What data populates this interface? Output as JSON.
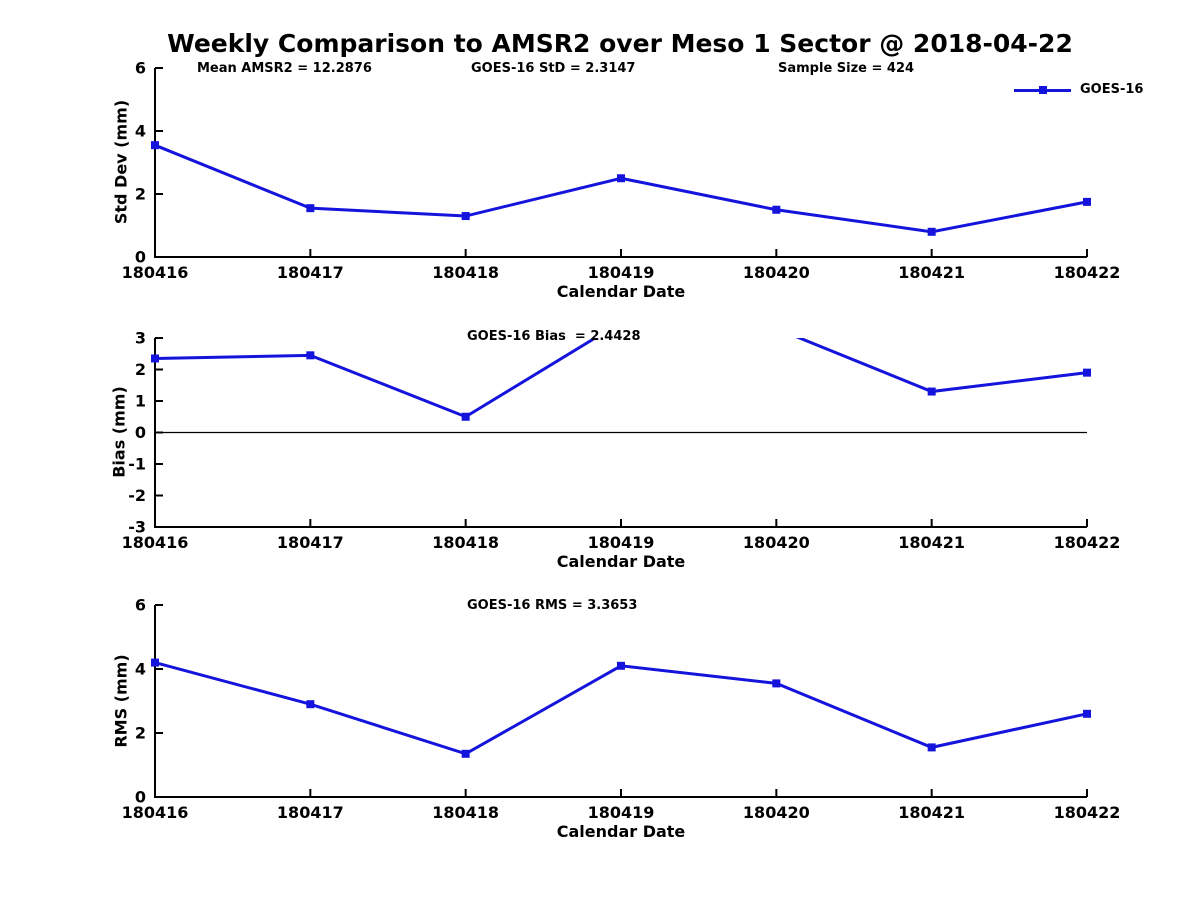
{
  "title": "Weekly Comparison to AMSR2 over Meso 1 Sector @ 2018-04-22",
  "legend": {
    "label": "GOES-16",
    "position": "top-right"
  },
  "colors": {
    "line": "#1414DC",
    "axis": "#000000",
    "text": "#000000",
    "background": "#FFFFFF"
  },
  "chart_data": [
    {
      "type": "line",
      "name": "std-dev",
      "xlabel": "Calendar Date",
      "ylabel": "Std Dev (mm)",
      "x": [
        "180416",
        "180417",
        "180418",
        "180419",
        "180420",
        "180421",
        "180422"
      ],
      "series": [
        {
          "name": "GOES-16",
          "marker": "square",
          "values": [
            3.55,
            1.55,
            1.3,
            2.5,
            1.5,
            0.8,
            1.75
          ]
        }
      ],
      "ylim": [
        0,
        6
      ],
      "yticks": [
        0,
        2,
        4,
        6
      ],
      "grid": false,
      "annotations": [
        "Mean AMSR2 = 12.2876",
        "GOES-16 StD = 2.3147",
        "Sample Size = 424"
      ]
    },
    {
      "type": "line",
      "name": "bias",
      "xlabel": "Calendar Date",
      "ylabel": "Bias (mm)",
      "x": [
        "180416",
        "180417",
        "180418",
        "180419",
        "180420",
        "180421",
        "180422"
      ],
      "series": [
        {
          "name": "GOES-16",
          "marker": "square",
          "values": [
            2.35,
            2.45,
            0.5,
            3.5,
            3.3,
            1.3,
            1.9
          ]
        }
      ],
      "ylim": [
        -3,
        3
      ],
      "yticks": [
        -3,
        -2,
        -1,
        0,
        1,
        2,
        3
      ],
      "zero_line": true,
      "grid": false,
      "note": "points at 180419 and 180420 exceed y-max 3 and the line is clipped at the top of the axes",
      "annotation": "GOES-16 Bias  = 2.4428"
    },
    {
      "type": "line",
      "name": "rms",
      "xlabel": "Calendar Date",
      "ylabel": "RMS (mm)",
      "x": [
        "180416",
        "180417",
        "180418",
        "180419",
        "180420",
        "180421",
        "180422"
      ],
      "series": [
        {
          "name": "GOES-16",
          "marker": "square",
          "values": [
            4.2,
            2.9,
            1.35,
            4.1,
            3.55,
            1.55,
            2.6
          ]
        }
      ],
      "ylim": [
        0,
        6
      ],
      "yticks": [
        0,
        2,
        4,
        6
      ],
      "grid": false,
      "annotation": "GOES-16 RMS = 3.3653"
    }
  ]
}
